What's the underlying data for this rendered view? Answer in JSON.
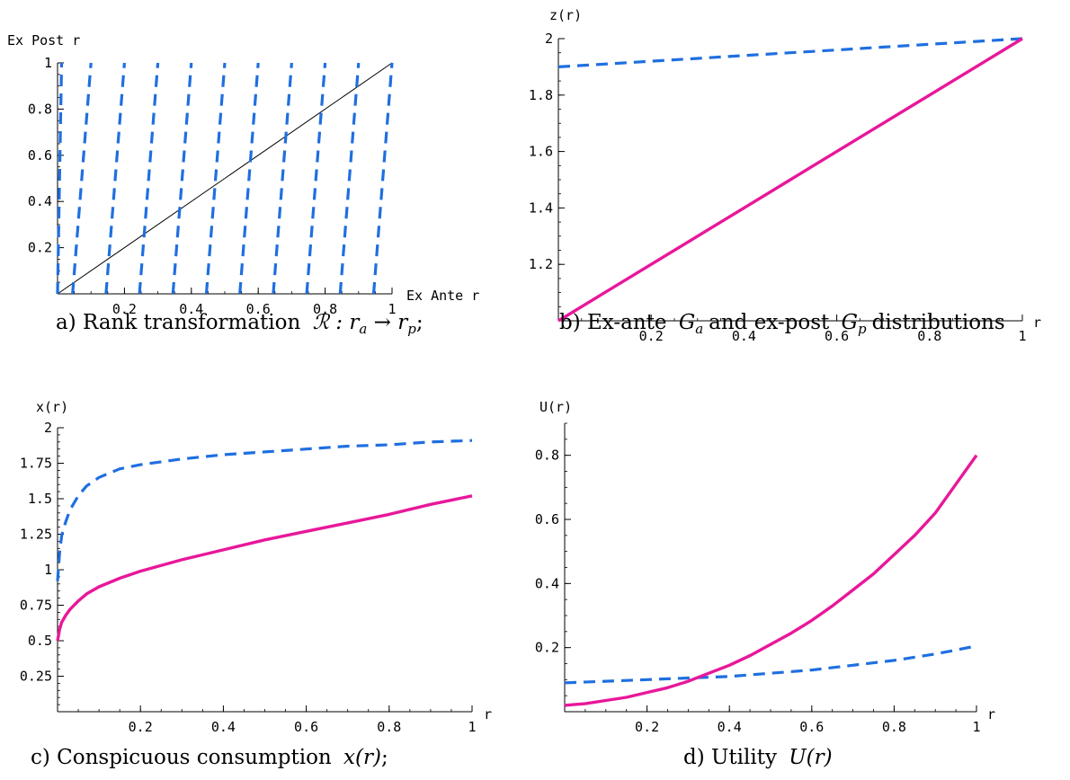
{
  "colors": {
    "ex_ante": "#1f6fe0",
    "ex_post": "#e8179a",
    "identity": "#000000"
  },
  "chart_data": [
    {
      "id": "a",
      "type": "line",
      "xlabel": "Ex Ante r",
      "ylabel": "Ex Post r",
      "xlim": [
        0,
        1
      ],
      "ylim": [
        0,
        1
      ],
      "xticks": [
        0.2,
        0.4,
        0.6,
        0.8,
        1
      ],
      "yticks": [
        0.2,
        0.4,
        0.6,
        0.8,
        1
      ],
      "xtick_labels": [
        "0.2",
        "0.4",
        "0.6",
        "0.8",
        "1"
      ],
      "ytick_labels": [
        "0.2",
        "0.4",
        "0.6",
        "0.8",
        "1"
      ],
      "series": [
        {
          "style": "solid-thin",
          "color_key": "identity",
          "x": [
            0,
            1
          ],
          "y": [
            0,
            1
          ]
        },
        {
          "style": "dashed",
          "color_key": "ex_ante",
          "segments": [
            {
              "x": [
                0.0,
                0.012
              ],
              "y": [
                0,
                1
              ]
            },
            {
              "x": [
                0.045,
                0.1
              ],
              "y": [
                0,
                1
              ]
            },
            {
              "x": [
                0.145,
                0.2
              ],
              "y": [
                0,
                1
              ]
            },
            {
              "x": [
                0.245,
                0.3
              ],
              "y": [
                0,
                1
              ]
            },
            {
              "x": [
                0.345,
                0.4
              ],
              "y": [
                0,
                1
              ]
            },
            {
              "x": [
                0.445,
                0.5
              ],
              "y": [
                0,
                1
              ]
            },
            {
              "x": [
                0.545,
                0.6
              ],
              "y": [
                0,
                1
              ]
            },
            {
              "x": [
                0.645,
                0.7
              ],
              "y": [
                0,
                1
              ]
            },
            {
              "x": [
                0.745,
                0.8
              ],
              "y": [
                0,
                1
              ]
            },
            {
              "x": [
                0.845,
                0.9
              ],
              "y": [
                0,
                1
              ]
            },
            {
              "x": [
                0.945,
                1.0
              ],
              "y": [
                0,
                1
              ]
            }
          ]
        }
      ],
      "caption_prefix": "a) Rank transformation",
      "caption_math": "ℛ : r",
      "caption_sub1": "a",
      "caption_arrow": " → r",
      "caption_sub2": "p",
      "caption_end": ";"
    },
    {
      "id": "b",
      "type": "line",
      "xlabel": "r",
      "ylabel": "z(r)",
      "xlim": [
        0,
        1
      ],
      "ylim": [
        1,
        2
      ],
      "xticks": [
        0.2,
        0.4,
        0.6,
        0.8,
        1
      ],
      "yticks": [
        1.2,
        1.4,
        1.6,
        1.8,
        2
      ],
      "xtick_labels": [
        "0.2",
        "0.4",
        "0.6",
        "0.8",
        "1"
      ],
      "ytick_labels": [
        "1.2",
        "1.4",
        "1.6",
        "1.8",
        "2"
      ],
      "series": [
        {
          "style": "dashed",
          "color_key": "ex_ante",
          "x": [
            0,
            0.1,
            0.2,
            0.3,
            0.4,
            0.5,
            0.6,
            0.7,
            0.8,
            0.9,
            1.0
          ],
          "y": [
            1.9,
            1.91,
            1.92,
            1.93,
            1.94,
            1.95,
            1.96,
            1.97,
            1.98,
            1.99,
            2.0
          ]
        },
        {
          "style": "solid",
          "color_key": "ex_post",
          "x": [
            0,
            0.1,
            0.2,
            0.3,
            0.4,
            0.5,
            0.6,
            0.7,
            0.8,
            0.9,
            1.0
          ],
          "y": [
            1.0,
            1.1,
            1.2,
            1.3,
            1.4,
            1.5,
            1.6,
            1.7,
            1.8,
            1.9,
            2.0
          ]
        }
      ],
      "caption_prefix": "b) Ex-ante",
      "caption_G": "G",
      "caption_sub1": "a",
      "caption_mid": "and ex-post",
      "caption_sub2": "p",
      "caption_end": "distributions"
    },
    {
      "id": "c",
      "type": "line",
      "xlabel": "r",
      "ylabel": "x(r)",
      "xlim": [
        0,
        1
      ],
      "ylim": [
        0,
        2
      ],
      "xticks": [
        0.2,
        0.4,
        0.6,
        0.8,
        1
      ],
      "yticks": [
        0.25,
        0.5,
        0.75,
        1,
        1.25,
        1.5,
        1.75,
        2
      ],
      "xtick_labels": [
        "0.2",
        "0.4",
        "0.6",
        "0.8",
        "1"
      ],
      "ytick_labels": [
        "0.25",
        "0.5",
        "0.75",
        "1",
        "1.25",
        "1.5",
        "1.75",
        "2"
      ],
      "series": [
        {
          "style": "dashed",
          "color_key": "ex_ante",
          "x": [
            0,
            0.005,
            0.01,
            0.02,
            0.03,
            0.05,
            0.07,
            0.1,
            0.15,
            0.2,
            0.3,
            0.4,
            0.5,
            0.6,
            0.7,
            0.8,
            0.9,
            1.0
          ],
          "y": [
            0.92,
            1.12,
            1.24,
            1.34,
            1.42,
            1.52,
            1.59,
            1.65,
            1.71,
            1.74,
            1.78,
            1.81,
            1.83,
            1.85,
            1.87,
            1.88,
            1.9,
            1.91
          ]
        },
        {
          "style": "solid",
          "color_key": "ex_post",
          "x": [
            0,
            0.005,
            0.01,
            0.02,
            0.03,
            0.05,
            0.07,
            0.1,
            0.15,
            0.2,
            0.3,
            0.4,
            0.5,
            0.6,
            0.7,
            0.8,
            0.9,
            1.0
          ],
          "y": [
            0.5,
            0.58,
            0.63,
            0.68,
            0.72,
            0.78,
            0.83,
            0.88,
            0.94,
            0.99,
            1.07,
            1.14,
            1.21,
            1.27,
            1.33,
            1.39,
            1.46,
            1.52
          ]
        }
      ],
      "caption_prefix": "c) Conspicuous consumption",
      "caption_math": "x(r)",
      "caption_end": ";"
    },
    {
      "id": "d",
      "type": "line",
      "xlabel": "r",
      "ylabel": "U(r)",
      "xlim": [
        0,
        1
      ],
      "ylim": [
        0,
        0.9
      ],
      "xticks": [
        0.2,
        0.4,
        0.6,
        0.8,
        1
      ],
      "yticks": [
        0.2,
        0.4,
        0.6,
        0.8
      ],
      "xtick_labels": [
        "0.2",
        "0.4",
        "0.6",
        "0.8",
        "1"
      ],
      "ytick_labels": [
        "0.2",
        "0.4",
        "0.6",
        "0.8"
      ],
      "series": [
        {
          "style": "dashed",
          "color_key": "ex_ante",
          "x": [
            0,
            0.1,
            0.2,
            0.3,
            0.4,
            0.5,
            0.6,
            0.7,
            0.8,
            0.9,
            1.0
          ],
          "y": [
            0.09,
            0.095,
            0.1,
            0.105,
            0.11,
            0.12,
            0.13,
            0.145,
            0.16,
            0.18,
            0.205
          ]
        },
        {
          "style": "solid",
          "color_key": "ex_post",
          "x": [
            0,
            0.05,
            0.1,
            0.15,
            0.2,
            0.25,
            0.3,
            0.35,
            0.4,
            0.45,
            0.5,
            0.55,
            0.6,
            0.65,
            0.7,
            0.75,
            0.8,
            0.85,
            0.9,
            0.95,
            1.0
          ],
          "y": [
            0.02,
            0.025,
            0.035,
            0.045,
            0.06,
            0.075,
            0.095,
            0.12,
            0.145,
            0.175,
            0.21,
            0.245,
            0.285,
            0.33,
            0.38,
            0.43,
            0.49,
            0.55,
            0.62,
            0.71,
            0.8
          ]
        }
      ],
      "caption_prefix": "d) Utility",
      "caption_math": "U(r)"
    }
  ]
}
